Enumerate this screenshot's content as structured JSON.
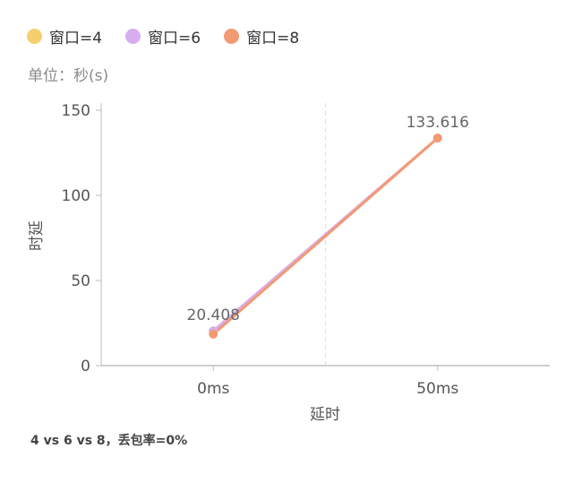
{
  "chart_data": {
    "type": "line",
    "title": "",
    "unit_label": "单位：秒(s)",
    "xlabel": "延时",
    "ylabel": "时延",
    "categories": [
      "0ms",
      "50ms"
    ],
    "ylim": [
      0,
      150
    ],
    "yticks": [
      0,
      50,
      100,
      150
    ],
    "legend_position": "top-left",
    "grid": false,
    "series": [
      {
        "name": "窗口=4",
        "color": "#f5cf6e",
        "values": [
          20.408,
          133.616
        ]
      },
      {
        "name": "窗口=6",
        "color": "#d8adf0",
        "values": [
          20.408,
          133.616
        ]
      },
      {
        "name": "窗口=8",
        "color": "#f29a72",
        "values": [
          18.5,
          133.616
        ]
      }
    ],
    "data_labels": [
      {
        "series": 1,
        "index": 0,
        "text": "20.408"
      },
      {
        "series": 2,
        "index": 1,
        "text": "133.616"
      }
    ],
    "caption": "4 vs 6 vs 8，丢包率=0%"
  }
}
